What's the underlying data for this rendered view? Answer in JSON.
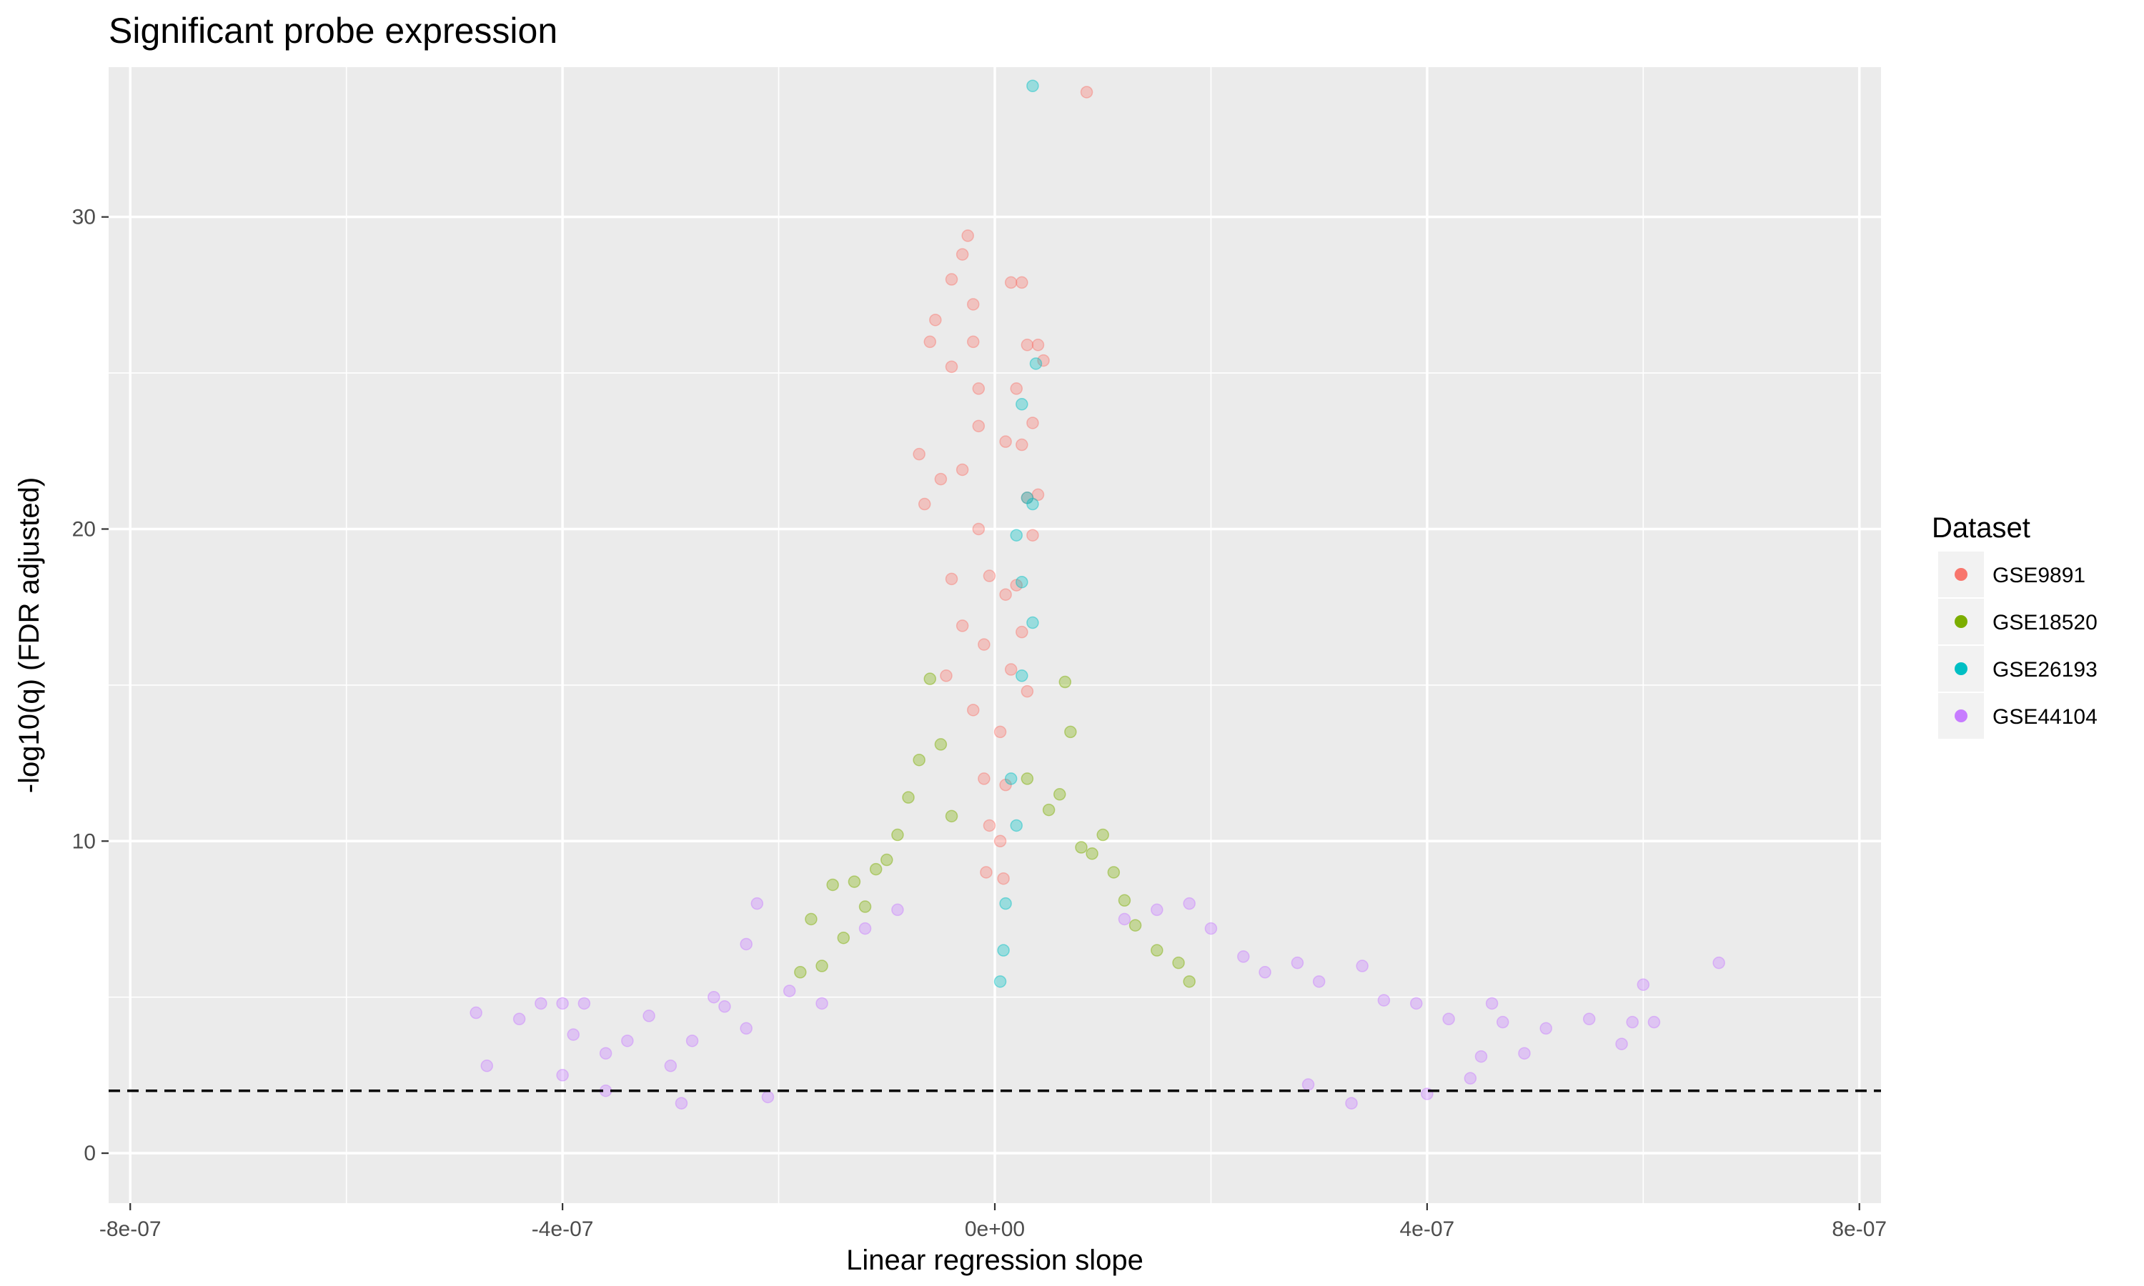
{
  "chart_data": {
    "type": "scatter",
    "title": "Significant probe expression",
    "xlabel": "Linear regression slope",
    "ylabel": "-log10(q) (FDR adjusted)",
    "xlim": [
      -8.2e-07,
      8.2e-07
    ],
    "ylim": [
      -1.6,
      34.8
    ],
    "x_ticks": [
      -8e-07,
      -4e-07,
      0,
      4e-07,
      8e-07
    ],
    "x_tick_labels": [
      "-8e-07",
      "-4e-07",
      "0e+00",
      "4e-07",
      "8e-07"
    ],
    "y_ticks": [
      0,
      10,
      20,
      30
    ],
    "y_tick_labels": [
      "0",
      "10",
      "20",
      "30"
    ],
    "grid": true,
    "threshold_line": {
      "y": 2,
      "style": "dashed"
    },
    "legend": {
      "title": "Dataset",
      "position": "right",
      "entries": [
        "GSE9891",
        "GSE18520",
        "GSE26193",
        "GSE44104"
      ]
    },
    "series": [
      {
        "name": "GSE44104",
        "color": "#C77CFF",
        "points": [
          [
            -4.8e-07,
            4.5
          ],
          [
            -4.7e-07,
            2.8
          ],
          [
            -4.4e-07,
            4.3
          ],
          [
            -4.2e-07,
            4.8
          ],
          [
            -4e-07,
            4.8
          ],
          [
            -4e-07,
            2.5
          ],
          [
            -3.9e-07,
            3.8
          ],
          [
            -3.8e-07,
            4.8
          ],
          [
            -3.6e-07,
            3.2
          ],
          [
            -3.4e-07,
            3.6
          ],
          [
            -3.2e-07,
            4.4
          ],
          [
            -3e-07,
            2.8
          ],
          [
            -2.8e-07,
            3.6
          ],
          [
            -2.6e-07,
            5.0
          ],
          [
            -2.5e-07,
            4.7
          ],
          [
            -2.3e-07,
            4.0
          ],
          [
            -2.2e-07,
            8.0
          ],
          [
            -2.3e-07,
            6.7
          ],
          [
            -1.9e-07,
            5.2
          ],
          [
            -1.6e-07,
            4.8
          ],
          [
            -1.2e-07,
            7.2
          ],
          [
            -9e-08,
            7.8
          ],
          [
            1.2e-07,
            7.5
          ],
          [
            1.5e-07,
            7.8
          ],
          [
            1.8e-07,
            8.0
          ],
          [
            2e-07,
            7.2
          ],
          [
            2.3e-07,
            6.3
          ],
          [
            2.5e-07,
            5.8
          ],
          [
            2.8e-07,
            6.1
          ],
          [
            3e-07,
            5.5
          ],
          [
            3.4e-07,
            6.0
          ],
          [
            3.6e-07,
            4.9
          ],
          [
            3.9e-07,
            4.8
          ],
          [
            4.2e-07,
            4.3
          ],
          [
            4.4e-07,
            2.4
          ],
          [
            4.5e-07,
            3.1
          ],
          [
            4.6e-07,
            4.8
          ],
          [
            4.7e-07,
            4.2
          ],
          [
            4.9e-07,
            3.2
          ],
          [
            5.1e-07,
            4.0
          ],
          [
            5.5e-07,
            4.3
          ],
          [
            5.8e-07,
            3.5
          ],
          [
            5.9e-07,
            4.2
          ],
          [
            6e-07,
            5.4
          ],
          [
            6.1e-07,
            4.2
          ],
          [
            6.7e-07,
            6.1
          ],
          [
            3.3e-07,
            1.6
          ],
          [
            4e-07,
            1.9
          ],
          [
            -3.6e-07,
            2.0
          ],
          [
            -2.9e-07,
            1.6
          ],
          [
            -2.1e-07,
            1.8
          ],
          [
            2.9e-07,
            2.2
          ]
        ]
      },
      {
        "name": "GSE18520",
        "color": "#7CAE00",
        "points": [
          [
            -1.7e-07,
            7.5
          ],
          [
            -1.5e-07,
            8.6
          ],
          [
            -1.4e-07,
            6.9
          ],
          [
            -1.3e-07,
            8.7
          ],
          [
            -1.2e-07,
            7.9
          ],
          [
            -1.1e-07,
            9.1
          ],
          [
            -1e-07,
            9.4
          ],
          [
            -9e-08,
            10.2
          ],
          [
            -8e-08,
            11.4
          ],
          [
            -7e-08,
            12.6
          ],
          [
            -6e-08,
            15.2
          ],
          [
            -5e-08,
            13.1
          ],
          [
            -4e-08,
            10.8
          ],
          [
            3e-08,
            12.0
          ],
          [
            5e-08,
            11.0
          ],
          [
            6e-08,
            11.5
          ],
          [
            7e-08,
            13.5
          ],
          [
            6.5e-08,
            15.1
          ],
          [
            8e-08,
            9.8
          ],
          [
            9e-08,
            9.6
          ],
          [
            1e-07,
            10.2
          ],
          [
            1.1e-07,
            9.0
          ],
          [
            1.2e-07,
            8.1
          ],
          [
            1.3e-07,
            7.3
          ],
          [
            1.5e-07,
            6.5
          ],
          [
            1.7e-07,
            6.1
          ],
          [
            1.8e-07,
            5.5
          ],
          [
            -1.6e-07,
            6.0
          ],
          [
            -1.8e-07,
            5.8
          ]
        ]
      },
      {
        "name": "GSE9891",
        "color": "#F8766D",
        "points": [
          [
            8.5e-08,
            34.0
          ],
          [
            -2.5e-08,
            29.4
          ],
          [
            -3e-08,
            28.8
          ],
          [
            -4e-08,
            28.0
          ],
          [
            -2e-08,
            27.2
          ],
          [
            1.5e-08,
            27.9
          ],
          [
            2.5e-08,
            27.9
          ],
          [
            -5.5e-08,
            26.7
          ],
          [
            -6e-08,
            26.0
          ],
          [
            -2e-08,
            26.0
          ],
          [
            3e-08,
            25.9
          ],
          [
            4e-08,
            25.9
          ],
          [
            4.5e-08,
            25.4
          ],
          [
            -4e-08,
            25.2
          ],
          [
            -1.5e-08,
            24.5
          ],
          [
            2e-08,
            24.5
          ],
          [
            3.5e-08,
            23.4
          ],
          [
            -1.5e-08,
            23.3
          ],
          [
            1e-08,
            22.8
          ],
          [
            2.5e-08,
            22.7
          ],
          [
            -7e-08,
            22.4
          ],
          [
            -5e-08,
            21.6
          ],
          [
            -3e-08,
            21.9
          ],
          [
            3e-08,
            21.0
          ],
          [
            4e-08,
            21.1
          ],
          [
            -6.5e-08,
            20.8
          ],
          [
            -1.5e-08,
            20.0
          ],
          [
            3.5e-08,
            19.8
          ],
          [
            -4e-08,
            18.4
          ],
          [
            2e-08,
            18.2
          ],
          [
            1e-08,
            17.9
          ],
          [
            -3e-08,
            16.9
          ],
          [
            2.5e-08,
            16.7
          ],
          [
            -4.5e-08,
            15.3
          ],
          [
            3e-08,
            14.8
          ],
          [
            -1e-08,
            16.3
          ],
          [
            1.5e-08,
            15.5
          ],
          [
            -5e-09,
            18.5
          ],
          [
            -2e-08,
            14.2
          ],
          [
            5e-09,
            13.5
          ],
          [
            -1e-08,
            12.0
          ],
          [
            1e-08,
            11.8
          ],
          [
            -5e-09,
            10.5
          ],
          [
            5e-09,
            10.0
          ],
          [
            -8e-09,
            9.0
          ],
          [
            8e-09,
            8.8
          ]
        ]
      },
      {
        "name": "GSE26193",
        "color": "#00BFC4",
        "points": [
          [
            3.5e-08,
            34.2
          ],
          [
            3.8e-08,
            25.3
          ],
          [
            2.5e-08,
            24.0
          ],
          [
            3e-08,
            21.0
          ],
          [
            3.5e-08,
            20.8
          ],
          [
            2e-08,
            19.8
          ],
          [
            2.5e-08,
            18.3
          ],
          [
            3.5e-08,
            17.0
          ],
          [
            2.5e-08,
            15.3
          ],
          [
            1.5e-08,
            12.0
          ],
          [
            2e-08,
            10.5
          ],
          [
            1e-08,
            8.0
          ],
          [
            8e-09,
            6.5
          ],
          [
            5e-09,
            5.5
          ]
        ]
      }
    ]
  }
}
